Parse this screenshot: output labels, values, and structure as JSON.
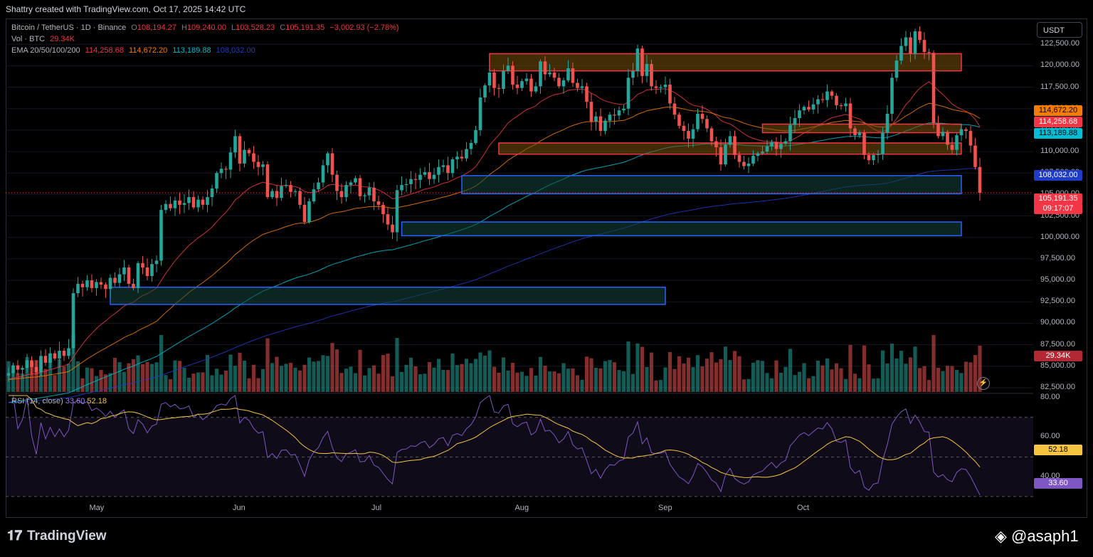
{
  "header": {
    "attribution": "Shattry created with TradingView.com, Oct 17, 2025 14:42 UTC"
  },
  "legend": {
    "symbol": "Bitcoin / TetherUS · 1D · Binance",
    "o_label": "O",
    "o": "108,194.27",
    "h_label": "H",
    "h": "109,240.00",
    "l_label": "L",
    "l": "103,528.23",
    "c_label": "C",
    "c": "105,191.35",
    "change": "−3,002.93 (−2.78%)",
    "vol_label": "Vol · BTC",
    "vol": "29.34K",
    "ema_label": "EMA 20/50/100/200",
    "ema20": "114,258.68",
    "ema50": "114,672.20",
    "ema100": "113,189.88",
    "ema200": "108,032.00"
  },
  "currency_button": "USDT",
  "badges": {
    "ema50": "114,672.20",
    "ema20": "114,258.68",
    "ema100": "113,189.88",
    "ema200": "108,032.00",
    "price": "105,191.35",
    "countdown": "09:17:07",
    "volume": "29.34K",
    "rsi_ma": "52.18",
    "rsi": "33.60"
  },
  "rsi_legend": {
    "label": "RSI (14, close)",
    "rsi": "33.60",
    "ma": "52.18"
  },
  "footer": {
    "brand": "TradingView",
    "user": "@asaph1"
  },
  "colors": {
    "up": "#26a69a",
    "down": "#ef5350",
    "ema20": "#f23645",
    "ema50": "#f57c00",
    "ema100": "#00bcd4",
    "ema200": "#1e3cc8",
    "rsi": "#7e57c2",
    "rsi_ma": "#f5c542"
  },
  "chart_data": [
    {
      "type": "candlestick",
      "title": "Bitcoin / TetherUS · 1D · Binance",
      "y_ticks": [
        82500,
        85000,
        87500,
        90000,
        92500,
        95000,
        97500,
        100000,
        102500,
        105000,
        107500,
        110000,
        112500,
        115000,
        117500,
        120000,
        122500
      ],
      "ylim": [
        82000,
        125500
      ],
      "x_ticks": [
        "May",
        "Jun",
        "Jul",
        "Aug",
        "Sep",
        "Oct"
      ],
      "series": [
        {
          "name": "Price",
          "close": [
            84200,
            85100,
            84600,
            84800,
            85700,
            84900,
            84300,
            86200,
            85400,
            86500,
            85900,
            86800,
            86200,
            87100,
            93500,
            94600,
            94200,
            95000,
            94100,
            94800,
            94500,
            94000,
            95300,
            94700,
            95700,
            96500,
            94600,
            94100,
            97000,
            96500,
            95500,
            96900,
            97300,
            103200,
            103900,
            103400,
            104300,
            103800,
            104000,
            104700,
            103500,
            104400,
            103800,
            104700,
            105700,
            107500,
            108000,
            107900,
            109900,
            111800,
            108600,
            110200,
            109800,
            108800,
            108200,
            108500,
            104700,
            105400,
            104600,
            106000,
            106100,
            105300,
            105400,
            103800,
            101800,
            104200,
            105600,
            106400,
            108400,
            109800,
            107300,
            105400,
            104700,
            106100,
            106400,
            106900,
            104800,
            104900,
            105800,
            104200,
            103800,
            102700,
            101500,
            100600,
            105500,
            106100,
            106200,
            106800,
            106700,
            107300,
            107600,
            106800,
            107300,
            108200,
            108400,
            107500,
            109100,
            109400,
            109200,
            110300,
            111000,
            112500,
            116300,
            117700,
            119200,
            117400,
            117300,
            119400,
            120000,
            117800,
            117400,
            118200,
            118500,
            117000,
            117600,
            120500,
            119000,
            119200,
            118600,
            117600,
            118300,
            119700,
            118000,
            117400,
            117600,
            115800,
            113500,
            114100,
            112400,
            113600,
            114300,
            114200,
            114800,
            115000,
            118600,
            119400,
            122000,
            118800,
            120200,
            117600,
            117400,
            117500,
            117800,
            115600,
            114300,
            113000,
            112400,
            111500,
            112600,
            114400,
            113800,
            112700,
            111200,
            110500,
            108500,
            110800,
            111800,
            109600,
            108800,
            108300,
            108600,
            109500,
            109800,
            110000,
            110600,
            111100,
            110300,
            110900,
            111200,
            113100,
            113900,
            114800,
            115200,
            114900,
            115500,
            116100,
            116000,
            117000,
            116500,
            115400,
            115300,
            115600,
            112700,
            111900,
            112200,
            109600,
            109000,
            109600,
            109700,
            112200,
            114400,
            118600,
            120600,
            122300,
            123300,
            121400,
            124000,
            123000,
            121600,
            121500,
            113300,
            111800,
            112300,
            110800,
            110200,
            111900,
            112600,
            112400,
            110700,
            108200,
            105191
          ]
        }
      ]
    },
    {
      "type": "line",
      "title": "EMA 20/50/100/200",
      "series": [
        {
          "name": "20",
          "last": 114258.68
        },
        {
          "name": "50",
          "last": 114672.2
        },
        {
          "name": "100",
          "last": 113189.88
        },
        {
          "name": "200",
          "last": 108032.0
        }
      ]
    },
    {
      "type": "bar",
      "title": "Vol · BTC",
      "last": 29.34
    },
    {
      "type": "line",
      "title": "RSI (14, close)",
      "y_ticks": [
        40,
        60,
        80
      ],
      "ylim": [
        30,
        81
      ],
      "series": [
        {
          "name": "RSI",
          "last": 33.6
        },
        {
          "name": "MA",
          "last": 52.18
        }
      ]
    }
  ],
  "zones": [
    {
      "kind": "resistance",
      "start_index": 104,
      "end_index": 206,
      "low": 119400,
      "high": 121400
    },
    {
      "kind": "resistance",
      "start_index": 163,
      "end_index": 206,
      "low": 112200,
      "high": 113200
    },
    {
      "kind": "resistance",
      "start_index": 106,
      "end_index": 206,
      "low": 109700,
      "high": 111000
    },
    {
      "kind": "support",
      "start_index": 98,
      "end_index": 206,
      "low": 105100,
      "high": 107200
    },
    {
      "kind": "support",
      "start_index": 85,
      "end_index": 206,
      "low": 100200,
      "high": 101800
    },
    {
      "kind": "support",
      "start_index": 22,
      "end_index": 142,
      "low": 92200,
      "high": 94200
    }
  ]
}
